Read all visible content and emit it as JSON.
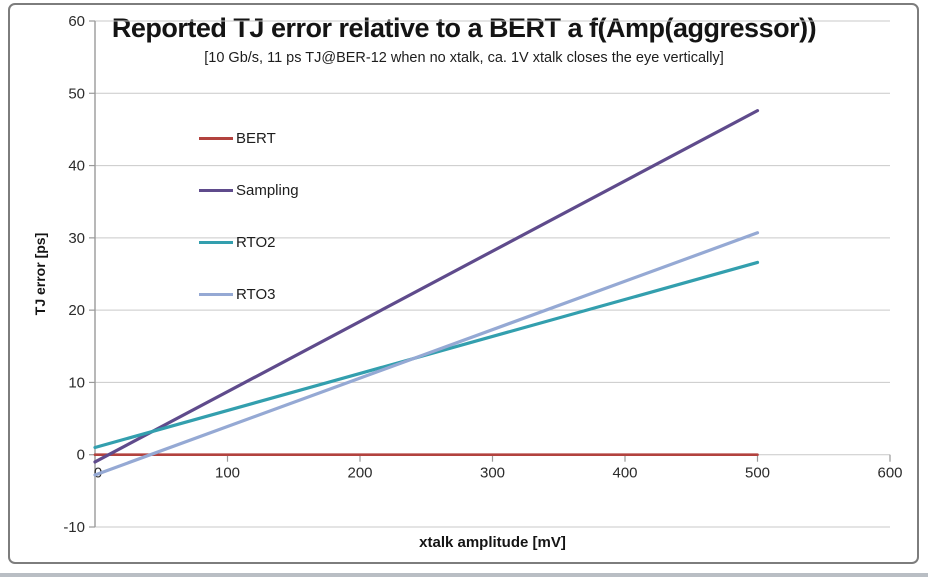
{
  "chart_data": {
    "type": "line",
    "title": "Reported TJ error relative to a BERT a f(Amp(aggressor))",
    "subtitle": "[10 Gb/s, 11 ps TJ@BER-12 when no xtalk, ca. 1V xtalk closes the eye vertically]",
    "xlabel": "xtalk amplitude [mV]",
    "ylabel": "TJ error [ps]",
    "xlim": [
      0,
      600
    ],
    "ylim": [
      -10,
      60
    ],
    "xticks": [
      0,
      100,
      200,
      300,
      400,
      500,
      600
    ],
    "yticks": [
      60,
      50,
      40,
      30,
      20,
      10,
      0,
      -10
    ],
    "grid": "horizontal",
    "legend_position": "inside-top-left",
    "colors": {
      "axis_line": "#9a9a9a",
      "gridline": "#c9c9c9",
      "tick_text": "#2b2b2b"
    },
    "series": [
      {
        "name": "BERT",
        "color": "#b2423e",
        "line_width": 2.6,
        "x": [
          0,
          500
        ],
        "y": [
          0,
          0
        ]
      },
      {
        "name": "Sampling",
        "color": "#5f4b8c",
        "line_width": 3.2,
        "x": [
          0,
          500
        ],
        "y": [
          -1,
          47.6
        ]
      },
      {
        "name": "RTO2",
        "color": "#339fae",
        "line_width": 3.2,
        "x": [
          0,
          500
        ],
        "y": [
          1,
          26.6
        ]
      },
      {
        "name": "RTO3",
        "color": "#95a9d4",
        "line_width": 3.2,
        "x": [
          0,
          500
        ],
        "y": [
          -2.8,
          30.7
        ]
      }
    ]
  }
}
